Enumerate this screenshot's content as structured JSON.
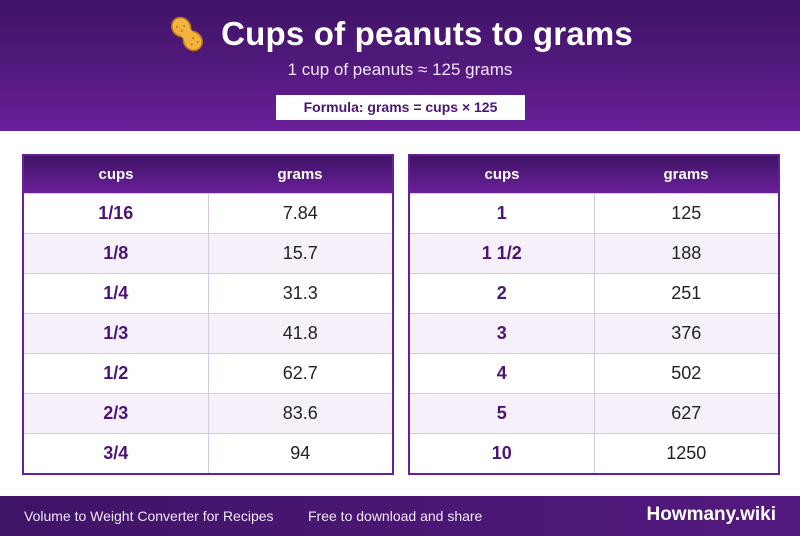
{
  "header": {
    "icon": "peanut-icon",
    "title": "Cups of peanuts to grams",
    "subtitle": "1 cup of peanuts ≈ 125 grams",
    "formula": "Formula: grams = cups × 125"
  },
  "tables": [
    {
      "headers": [
        "cups",
        "grams"
      ],
      "rows": [
        [
          "1/16",
          "7.84"
        ],
        [
          "1/8",
          "15.7"
        ],
        [
          "1/4",
          "31.3"
        ],
        [
          "1/3",
          "41.8"
        ],
        [
          "1/2",
          "62.7"
        ],
        [
          "2/3",
          "83.6"
        ],
        [
          "3/4",
          "94"
        ]
      ]
    },
    {
      "headers": [
        "cups",
        "grams"
      ],
      "rows": [
        [
          "1",
          "125"
        ],
        [
          "1 1/2",
          "188"
        ],
        [
          "2",
          "251"
        ],
        [
          "3",
          "376"
        ],
        [
          "4",
          "502"
        ],
        [
          "5",
          "627"
        ],
        [
          "10",
          "1250"
        ]
      ]
    }
  ],
  "footer": {
    "left": "Volume to Weight Converter for Recipes",
    "middle": "Free to download and share",
    "brand": "Howmany.wiki"
  },
  "colors": {
    "primary": "#54197f",
    "accent_text": "#4a1577",
    "row_alt": "#f5f0fa"
  }
}
